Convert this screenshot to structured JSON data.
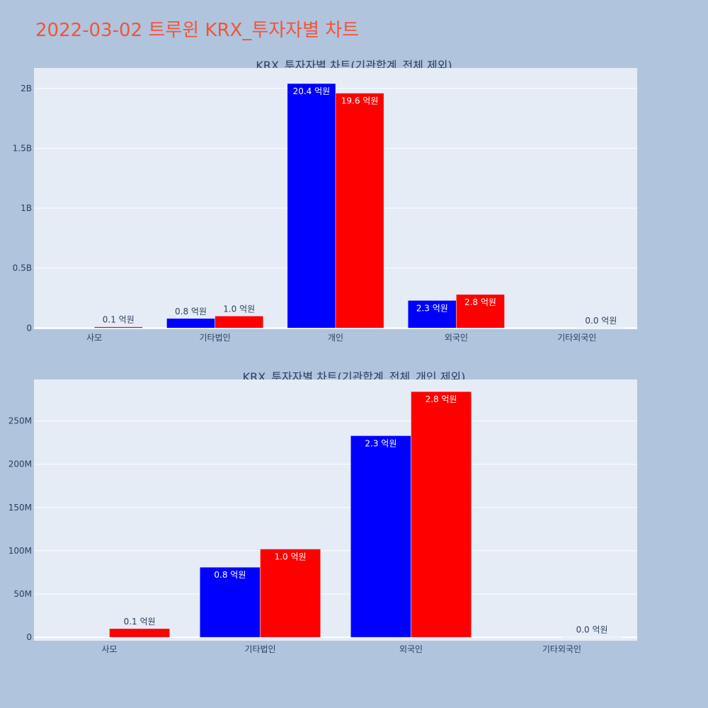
{
  "title": "2022-03-02 트루윈 KRX_투자자별 차트",
  "colors": {
    "background": "#B0C4DE",
    "plot_bg": "#E5ECF6",
    "title": "#EF553B",
    "series1": "#0000FF",
    "series2": "#FF0000"
  },
  "chart_data": [
    {
      "type": "bar",
      "title": "KRX_투자자별 차트(기관합계_전체 제외)",
      "categories": [
        "사모",
        "기타법인",
        "개인",
        "외국인",
        "기타외국인"
      ],
      "series": [
        {
          "color": "#0000FF",
          "values": [
            0,
            80000000,
            2040000000,
            230000000,
            0
          ],
          "labels": [
            "",
            "0.8 억원",
            "20.4 억원",
            "2.3 억원",
            ""
          ]
        },
        {
          "color": "#FF0000",
          "values": [
            10000000,
            100000000,
            1960000000,
            280000000,
            2000000
          ],
          "labels": [
            "0.1 억원",
            "1.0 억원",
            "19.6 억원",
            "2.8 억원",
            "0.0 억원"
          ]
        }
      ],
      "ylim": [
        -10000000,
        2170000000
      ],
      "yticks": [
        0,
        500000000,
        1000000000,
        1500000000,
        2000000000
      ],
      "yticklabels": [
        "0",
        "0.5B",
        "1B",
        "1.5B",
        "2B"
      ],
      "grid": true
    },
    {
      "type": "bar",
      "title": "KRX_투자자별 차트(기관합계_전체_개인 제외)",
      "categories": [
        "사모",
        "기타법인",
        "외국인",
        "기타외국인"
      ],
      "series": [
        {
          "color": "#0000FF",
          "values": [
            0,
            81000000,
            233000000,
            0
          ],
          "labels": [
            "",
            "0.8 억원",
            "2.3 억원",
            ""
          ]
        },
        {
          "color": "#FF0000",
          "values": [
            10000000,
            102000000,
            284000000,
            300000
          ],
          "labels": [
            "0.1 억원",
            "1.0 억원",
            "2.8 억원",
            "0.0 억원"
          ]
        }
      ],
      "ylim": [
        -4000000,
        298000000
      ],
      "yticks": [
        0,
        50000000,
        100000000,
        150000000,
        200000000,
        250000000
      ],
      "yticklabels": [
        "0",
        "50M",
        "100M",
        "150M",
        "200M",
        "250M"
      ],
      "grid": true
    }
  ]
}
